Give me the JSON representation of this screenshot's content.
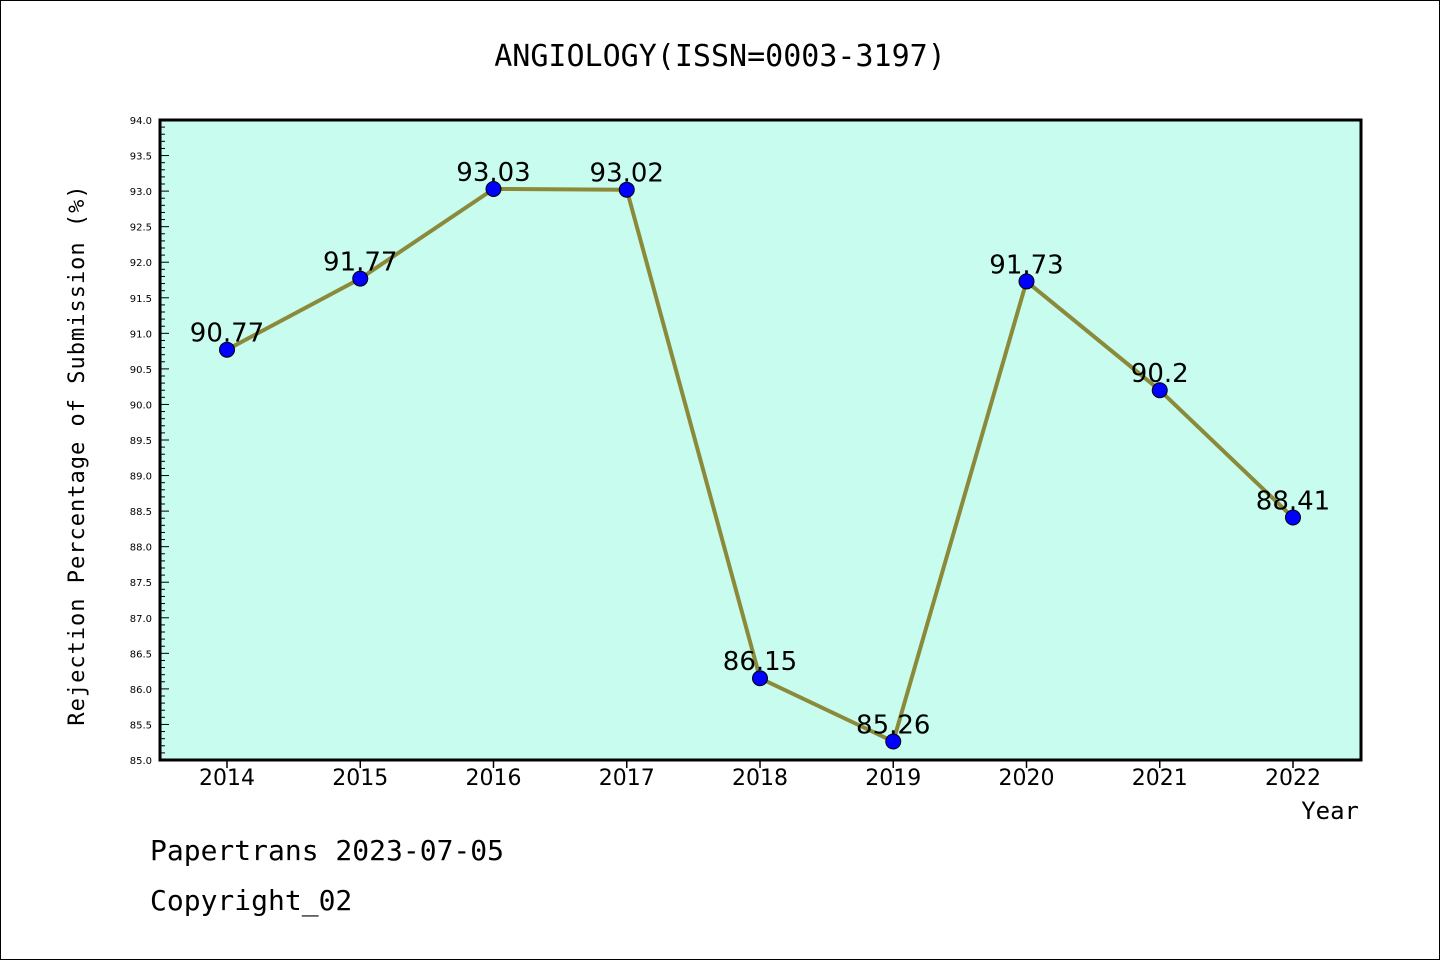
{
  "chart_data": {
    "type": "line",
    "title": "ANGIOLOGY(ISSN=0003-3197)",
    "xlabel": "Year",
    "ylabel": "Rejection Percentage of Submission (%)",
    "categories": [
      "2014",
      "2015",
      "2016",
      "2017",
      "2018",
      "2019",
      "2020",
      "2021",
      "2022"
    ],
    "values": [
      90.77,
      91.77,
      93.03,
      93.02,
      86.15,
      85.26,
      91.73,
      90.2,
      88.41
    ],
    "data_labels": [
      "90.77",
      "91.77",
      "93.03",
      "93.02",
      "86.15",
      "85.26",
      "91.73",
      "90.2",
      "88.41"
    ],
    "ylim": [
      85.0,
      94.0
    ],
    "yticks": [
      "85.0",
      "85.5",
      "86.0",
      "86.5",
      "87.0",
      "87.5",
      "88.0",
      "88.5",
      "89.0",
      "89.5",
      "90.0",
      "90.5",
      "91.0",
      "91.5",
      "92.0",
      "92.5",
      "93.0",
      "93.5",
      "94.0"
    ],
    "grid": false,
    "colors": {
      "plot_background": "#c8fcee",
      "line": "#8b8a3a",
      "marker": "#0000ff"
    }
  },
  "footer": {
    "line1": "Papertrans 2023-07-05",
    "line2": "Copyright_02"
  }
}
